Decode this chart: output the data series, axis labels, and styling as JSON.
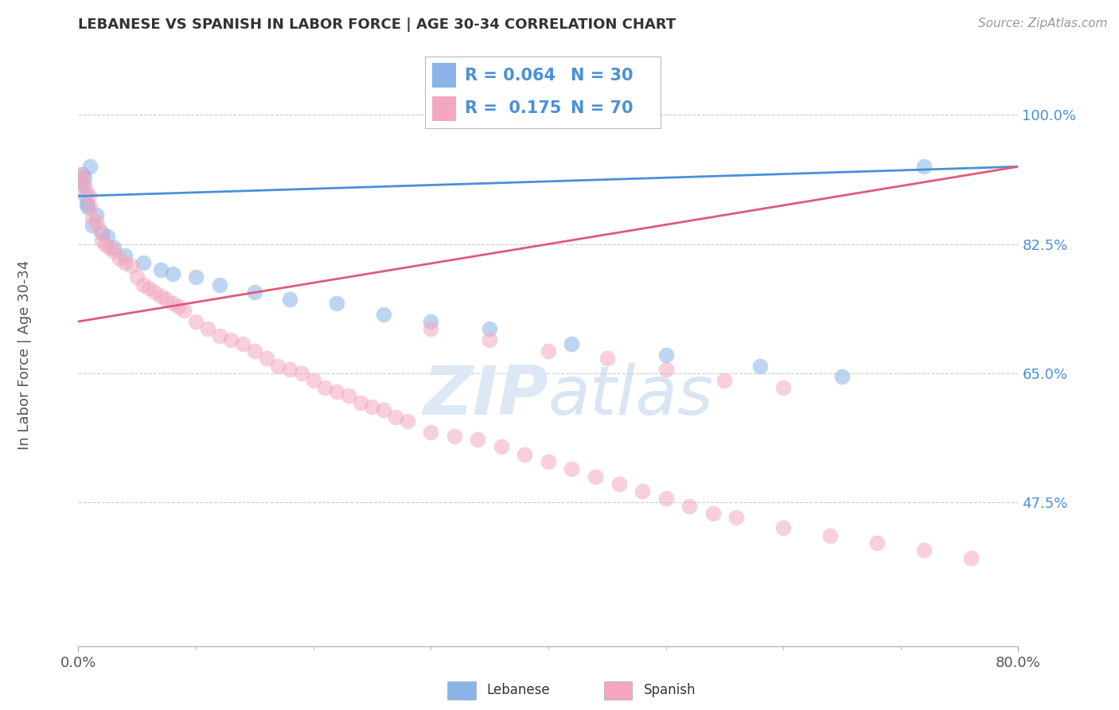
{
  "title": "LEBANESE VS SPANISH IN LABOR FORCE | AGE 30-34 CORRELATION CHART",
  "source": "Source: ZipAtlas.com",
  "ylabel": "In Labor Force | Age 30-34",
  "legend_r_blue": "0.064",
  "legend_n_blue": "30",
  "legend_r_pink": "0.175",
  "legend_n_pink": "70",
  "legend_label_blue": "Lebanese",
  "legend_label_pink": "Spanish",
  "blue_color": "#8ab4e8",
  "pink_color": "#f4a8c0",
  "blue_line_color": "#4a90d9",
  "pink_line_color": "#e05a7a",
  "background_color": "#ffffff",
  "blue_x": [
    0.2,
    0.3,
    0.4,
    0.5,
    0.6,
    0.7,
    0.8,
    1.0,
    1.2,
    1.5,
    2.0,
    2.5,
    3.0,
    4.0,
    5.5,
    7.0,
    8.0,
    10.0,
    12.0,
    15.0,
    18.0,
    22.0,
    26.0,
    30.0,
    35.0,
    42.0,
    50.0,
    58.0,
    65.0,
    72.0
  ],
  "blue_y": [
    91.0,
    92.0,
    90.5,
    91.5,
    89.0,
    88.0,
    87.5,
    93.0,
    85.0,
    86.5,
    84.0,
    83.5,
    82.0,
    81.0,
    80.0,
    79.0,
    78.5,
    78.0,
    77.0,
    76.0,
    75.0,
    74.5,
    73.0,
    72.0,
    71.0,
    69.0,
    67.5,
    66.0,
    64.5,
    93.0
  ],
  "pink_x": [
    0.2,
    0.3,
    0.5,
    0.7,
    0.9,
    1.0,
    1.2,
    1.5,
    1.8,
    2.0,
    2.3,
    2.6,
    3.0,
    3.5,
    4.0,
    4.5,
    5.0,
    5.5,
    6.0,
    6.5,
    7.0,
    7.5,
    8.0,
    8.5,
    9.0,
    10.0,
    11.0,
    12.0,
    13.0,
    14.0,
    15.0,
    16.0,
    17.0,
    18.0,
    19.0,
    20.0,
    21.0,
    22.0,
    23.0,
    24.0,
    25.0,
    26.0,
    27.0,
    28.0,
    30.0,
    32.0,
    34.0,
    36.0,
    38.0,
    40.0,
    42.0,
    44.0,
    46.0,
    48.0,
    50.0,
    52.0,
    54.0,
    56.0,
    60.0,
    64.0,
    68.0,
    72.0,
    76.0,
    30.0,
    35.0,
    40.0,
    45.0,
    50.0,
    55.0,
    60.0
  ],
  "pink_y": [
    92.0,
    91.5,
    90.5,
    89.5,
    89.0,
    87.5,
    86.0,
    85.5,
    84.5,
    83.0,
    82.5,
    82.0,
    81.5,
    80.5,
    80.0,
    79.5,
    78.0,
    77.0,
    76.5,
    76.0,
    75.5,
    75.0,
    74.5,
    74.0,
    73.5,
    72.0,
    71.0,
    70.0,
    69.5,
    69.0,
    68.0,
    67.0,
    66.0,
    65.5,
    65.0,
    64.0,
    63.0,
    62.5,
    62.0,
    61.0,
    60.5,
    60.0,
    59.0,
    58.5,
    57.0,
    56.5,
    56.0,
    55.0,
    54.0,
    53.0,
    52.0,
    51.0,
    50.0,
    49.0,
    48.0,
    47.0,
    46.0,
    45.5,
    44.0,
    43.0,
    42.0,
    41.0,
    40.0,
    71.0,
    69.5,
    68.0,
    67.0,
    65.5,
    64.0,
    63.0
  ],
  "xlim": [
    0,
    80
  ],
  "ylim": [
    28,
    105
  ],
  "yticks": [
    47.5,
    65.0,
    82.5,
    100.0
  ],
  "xticks": [
    0,
    80
  ]
}
